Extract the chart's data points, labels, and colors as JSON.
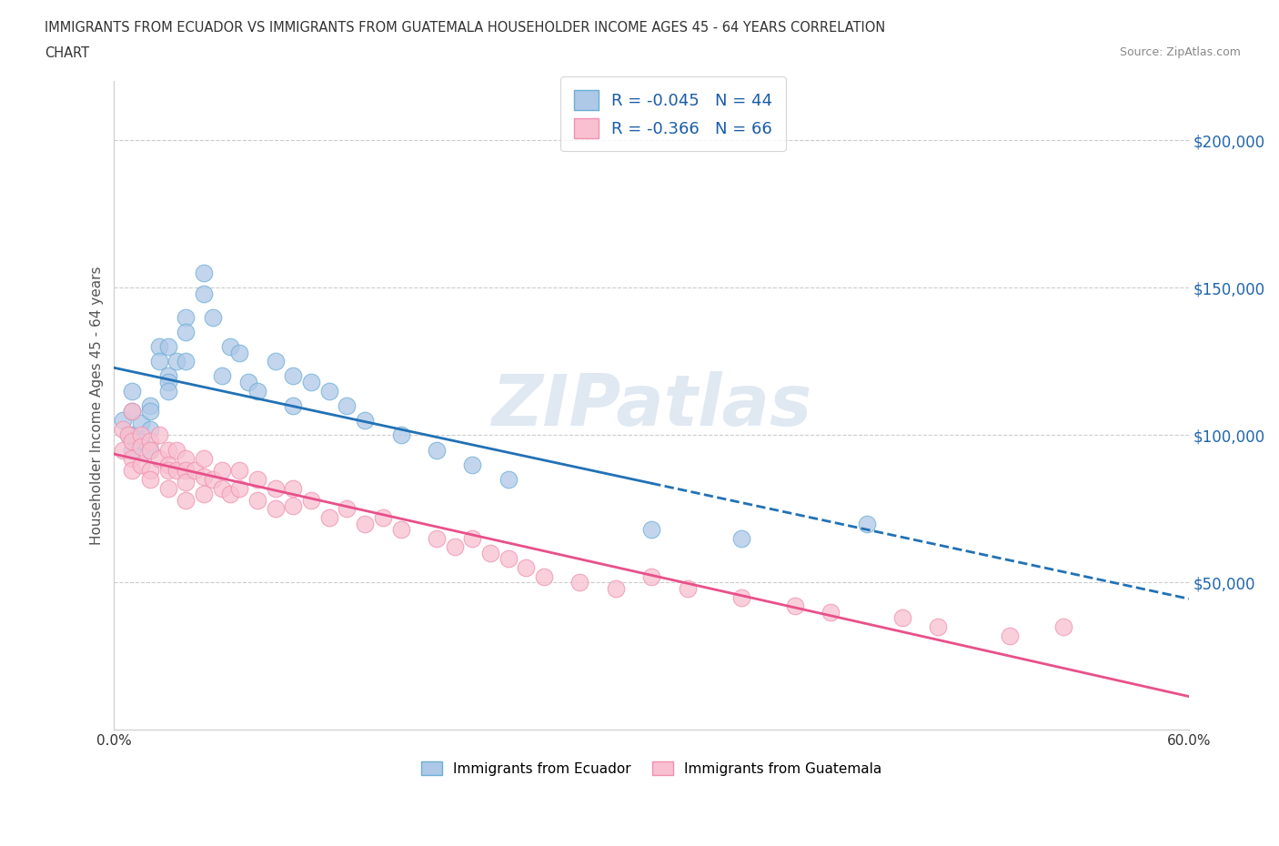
{
  "title_line1": "IMMIGRANTS FROM ECUADOR VS IMMIGRANTS FROM GUATEMALA HOUSEHOLDER INCOME AGES 45 - 64 YEARS CORRELATION",
  "title_line2": "CHART",
  "source": "Source: ZipAtlas.com",
  "ylabel": "Householder Income Ages 45 - 64 years",
  "xlim": [
    0.0,
    0.6
  ],
  "ylim": [
    0,
    220000
  ],
  "xticks": [
    0.0,
    0.1,
    0.2,
    0.3,
    0.4,
    0.5,
    0.6
  ],
  "xticklabels": [
    "0.0%",
    "",
    "",
    "",
    "",
    "",
    "60.0%"
  ],
  "ytick_positions": [
    50000,
    100000,
    150000,
    200000
  ],
  "ytick_labels": [
    "$50,000",
    "$100,000",
    "$150,000",
    "$200,000"
  ],
  "ecuador_color": "#6baed6",
  "ecuador_color_fill": "#aec8e8",
  "guatemala_color": "#f090b0",
  "guatemala_color_fill": "#f8c0d0",
  "trend_ecuador_color": "#2171b5",
  "trend_guatemala_color": "#e8508a",
  "R_ecuador": -0.045,
  "N_ecuador": 44,
  "R_guatemala": -0.366,
  "N_guatemala": 66,
  "legend_label_ecuador": "Immigrants from Ecuador",
  "legend_label_guatemala": "Immigrants from Guatemala",
  "watermark": "ZIPatlas",
  "ecuador_x": [
    0.005,
    0.008,
    0.01,
    0.01,
    0.01,
    0.01,
    0.015,
    0.015,
    0.02,
    0.02,
    0.02,
    0.02,
    0.025,
    0.025,
    0.03,
    0.03,
    0.03,
    0.03,
    0.035,
    0.04,
    0.04,
    0.04,
    0.05,
    0.05,
    0.055,
    0.06,
    0.065,
    0.07,
    0.075,
    0.08,
    0.09,
    0.1,
    0.1,
    0.11,
    0.12,
    0.13,
    0.14,
    0.16,
    0.18,
    0.2,
    0.22,
    0.3,
    0.35,
    0.42
  ],
  "ecuador_y": [
    105000,
    100000,
    108000,
    95000,
    100000,
    115000,
    98000,
    104000,
    110000,
    102000,
    95000,
    108000,
    130000,
    125000,
    120000,
    118000,
    130000,
    115000,
    125000,
    140000,
    135000,
    125000,
    155000,
    148000,
    140000,
    120000,
    130000,
    128000,
    118000,
    115000,
    125000,
    120000,
    110000,
    118000,
    115000,
    110000,
    105000,
    100000,
    95000,
    90000,
    85000,
    68000,
    65000,
    70000
  ],
  "guatemala_x": [
    0.005,
    0.005,
    0.008,
    0.01,
    0.01,
    0.01,
    0.01,
    0.015,
    0.015,
    0.015,
    0.02,
    0.02,
    0.02,
    0.02,
    0.025,
    0.025,
    0.03,
    0.03,
    0.03,
    0.03,
    0.035,
    0.035,
    0.04,
    0.04,
    0.04,
    0.04,
    0.045,
    0.05,
    0.05,
    0.05,
    0.055,
    0.06,
    0.06,
    0.065,
    0.07,
    0.07,
    0.08,
    0.08,
    0.09,
    0.09,
    0.1,
    0.1,
    0.11,
    0.12,
    0.13,
    0.14,
    0.15,
    0.16,
    0.18,
    0.19,
    0.2,
    0.21,
    0.22,
    0.23,
    0.24,
    0.26,
    0.28,
    0.3,
    0.32,
    0.35,
    0.38,
    0.4,
    0.44,
    0.46,
    0.5,
    0.53
  ],
  "guatemala_y": [
    102000,
    95000,
    100000,
    108000,
    98000,
    92000,
    88000,
    100000,
    96000,
    90000,
    98000,
    95000,
    88000,
    85000,
    100000,
    92000,
    95000,
    90000,
    88000,
    82000,
    95000,
    88000,
    92000,
    88000,
    84000,
    78000,
    88000,
    92000,
    86000,
    80000,
    85000,
    88000,
    82000,
    80000,
    88000,
    82000,
    85000,
    78000,
    82000,
    75000,
    82000,
    76000,
    78000,
    72000,
    75000,
    70000,
    72000,
    68000,
    65000,
    62000,
    65000,
    60000,
    58000,
    55000,
    52000,
    50000,
    48000,
    52000,
    48000,
    45000,
    42000,
    40000,
    38000,
    35000,
    32000,
    35000
  ],
  "ecuador_trend_solid_end": 0.3,
  "ecuador_trend_dashed_start": 0.3
}
